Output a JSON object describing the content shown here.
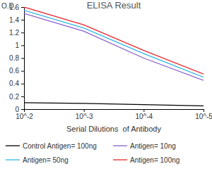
{
  "chart_data": {
    "type": "line",
    "title": "ELISA Result",
    "y_label": "O.D.",
    "x_label": "Serial Dilutions  of Antibody",
    "x": [
      0.01,
      0.001,
      0.0001,
      1e-05
    ],
    "xlim": [
      0.01,
      1e-05
    ],
    "xticks": [
      {
        "value": 0.01,
        "label": "10^-2"
      },
      {
        "value": 0.001,
        "label": "10^-3"
      },
      {
        "value": 0.0001,
        "label": "10^-4"
      },
      {
        "value": 1e-05,
        "label": "10^-5"
      }
    ],
    "log": "x",
    "ylim": [
      0,
      1.6
    ],
    "yticks": [
      0,
      0.2,
      0.4,
      0.6,
      0.8,
      1,
      1.2,
      1.4,
      1.6
    ],
    "grid": false,
    "legend": "bottom",
    "series": [
      {
        "name": "Control Antigen= 100ng",
        "color": "#000000",
        "values": [
          0.1,
          0.09,
          0.07,
          0.05
        ]
      },
      {
        "name": "Antigen= 10ng",
        "color": "#8a5fc8",
        "values": [
          1.5,
          1.22,
          0.8,
          0.45
        ]
      },
      {
        "name": "Antigen= 50ng",
        "color": "#33b5e5",
        "values": [
          1.55,
          1.27,
          0.87,
          0.5
        ]
      },
      {
        "name": "Antigen= 100ng",
        "color": "#e8262a",
        "values": [
          1.6,
          1.32,
          0.92,
          0.55
        ]
      }
    ]
  }
}
